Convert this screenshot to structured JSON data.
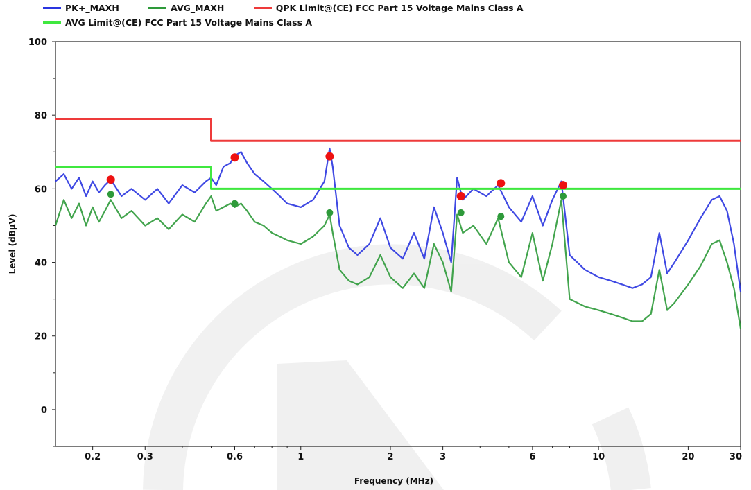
{
  "chart_data": {
    "type": "line",
    "xlabel": "Frequency (MHz)",
    "ylabel": "Level (dBµV)",
    "xscale": "log",
    "xlim": [
      0.15,
      30
    ],
    "ylim": [
      -10,
      100
    ],
    "xticks": [
      0.2,
      0.3,
      0.6,
      1,
      2,
      3,
      6,
      10,
      20,
      30
    ],
    "xtick_labels": [
      "0.2",
      "0.3",
      "0.6",
      "1",
      "2",
      "3",
      "6",
      "10",
      "20",
      "30"
    ],
    "yticks": [
      0,
      20,
      40,
      60,
      80,
      100
    ],
    "ytick_labels": [
      "0",
      "20",
      "40",
      "60",
      "80",
      "100"
    ],
    "grid": false,
    "legend": "top",
    "series": [
      {
        "name": "PK+_MAXH",
        "color": "#2a35e0",
        "x": [
          0.15,
          0.16,
          0.17,
          0.18,
          0.19,
          0.2,
          0.21,
          0.22,
          0.23,
          0.25,
          0.27,
          0.3,
          0.33,
          0.36,
          0.4,
          0.44,
          0.48,
          0.5,
          0.52,
          0.55,
          0.58,
          0.6,
          0.63,
          0.66,
          0.7,
          0.75,
          0.8,
          0.85,
          0.9,
          1.0,
          1.1,
          1.2,
          1.25,
          1.28,
          1.35,
          1.45,
          1.55,
          1.7,
          1.85,
          2.0,
          2.2,
          2.4,
          2.6,
          2.8,
          3.0,
          3.2,
          3.35,
          3.5,
          3.8,
          4.2,
          4.6,
          5.0,
          5.5,
          6.0,
          6.5,
          7.0,
          7.5,
          8.0,
          9.0,
          10.0,
          11.0,
          12.0,
          13.0,
          14.0,
          15.0,
          16.0,
          17.0,
          18.0,
          20.0,
          22.0,
          24.0,
          25.5,
          27.0,
          28.5,
          30.0
        ],
        "y": [
          62,
          64,
          60,
          63,
          58,
          62,
          59,
          61,
          62.5,
          58,
          60,
          57,
          60,
          56,
          61,
          59,
          62,
          63,
          61,
          66,
          67,
          69,
          70,
          67,
          64,
          62,
          60,
          58,
          56,
          55,
          57,
          62,
          71,
          66,
          50,
          44,
          42,
          45,
          52,
          44,
          41,
          48,
          41,
          55,
          48,
          40,
          63,
          57,
          60,
          58,
          61,
          55,
          51,
          58,
          50,
          57,
          62,
          42,
          38,
          36,
          35,
          34,
          33,
          34,
          36,
          48,
          37,
          40,
          46,
          52,
          57,
          58,
          54,
          45,
          32
        ]
      },
      {
        "name": "AVG_MAXH",
        "color": "#2e9a3a",
        "x": [
          0.15,
          0.16,
          0.17,
          0.18,
          0.19,
          0.2,
          0.21,
          0.22,
          0.23,
          0.25,
          0.27,
          0.3,
          0.33,
          0.36,
          0.4,
          0.44,
          0.48,
          0.5,
          0.52,
          0.55,
          0.58,
          0.6,
          0.63,
          0.66,
          0.7,
          0.75,
          0.8,
          0.85,
          0.9,
          1.0,
          1.1,
          1.2,
          1.25,
          1.28,
          1.35,
          1.45,
          1.55,
          1.7,
          1.85,
          2.0,
          2.2,
          2.4,
          2.6,
          2.8,
          3.0,
          3.2,
          3.35,
          3.5,
          3.8,
          4.2,
          4.6,
          5.0,
          5.5,
          6.0,
          6.5,
          7.0,
          7.5,
          8.0,
          9.0,
          10.0,
          11.0,
          12.0,
          13.0,
          14.0,
          15.0,
          16.0,
          17.0,
          18.0,
          20.0,
          22.0,
          24.0,
          25.5,
          27.0,
          28.5,
          30.0
        ],
        "y": [
          50,
          57,
          52,
          56,
          50,
          55,
          51,
          54,
          57,
          52,
          54,
          50,
          52,
          49,
          53,
          51,
          56,
          58,
          54,
          55,
          56,
          55,
          56,
          54,
          51,
          50,
          48,
          47,
          46,
          45,
          47,
          50,
          53,
          48,
          38,
          35,
          34,
          36,
          42,
          36,
          33,
          37,
          33,
          45,
          40,
          32,
          53,
          48,
          50,
          45,
          52,
          40,
          36,
          48,
          35,
          45,
          57,
          30,
          28,
          27,
          26,
          25,
          24,
          24,
          26,
          38,
          27,
          29,
          34,
          39,
          45,
          46,
          40,
          33,
          22
        ]
      },
      {
        "name": "QPK Limit@(CE) FCC Part 15 Voltage Mains Class A",
        "color": "#ee3a3a",
        "x": [
          0.15,
          0.5,
          0.5,
          30
        ],
        "y": [
          79,
          79,
          73,
          73
        ]
      },
      {
        "name": "AVG Limit@(CE) FCC Part 15 Voltage Mains Class A",
        "color": "#3fe83f",
        "x": [
          0.15,
          0.5,
          0.5,
          30
        ],
        "y": [
          66,
          66,
          60,
          60
        ]
      }
    ],
    "markers": [
      {
        "name": "QPK markers",
        "color": "#ee1111",
        "points": [
          [
            0.23,
            62.5
          ],
          [
            0.6,
            68.5
          ],
          [
            1.25,
            68.8
          ],
          [
            3.45,
            58
          ],
          [
            4.7,
            61.5
          ],
          [
            7.6,
            61
          ]
        ]
      },
      {
        "name": "AVG markers",
        "color": "#2e9a3a",
        "points": [
          [
            0.23,
            58.5
          ],
          [
            0.6,
            56
          ],
          [
            1.25,
            53.5
          ],
          [
            3.45,
            53.5
          ],
          [
            4.7,
            52.5
          ],
          [
            7.6,
            58
          ]
        ]
      }
    ]
  }
}
